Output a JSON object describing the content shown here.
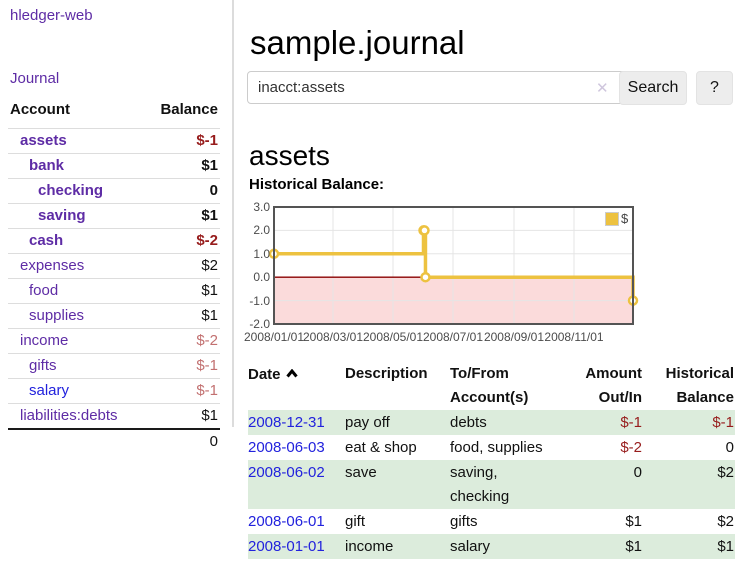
{
  "colors": {
    "accent_purple": "#5e2ca5",
    "link_blue": "#2222dd",
    "negative_strong": "#971c1c",
    "negative_soft": "#c27070",
    "row_green": "#dcecdc"
  },
  "sidebar": {
    "brand": "hledger-web",
    "nav": {
      "journal": "Journal"
    },
    "table": {
      "header": {
        "account": "Account",
        "balance": "Balance"
      },
      "accounts": [
        {
          "name": "assets",
          "balance": "$-1"
        },
        {
          "name": "bank",
          "balance": "$1"
        },
        {
          "name": "checking",
          "balance": "0"
        },
        {
          "name": "saving",
          "balance": "$1"
        },
        {
          "name": "cash",
          "balance": "$-2"
        },
        {
          "name": "expenses",
          "balance": "$2"
        },
        {
          "name": "food",
          "balance": "$1"
        },
        {
          "name": "supplies",
          "balance": "$1"
        },
        {
          "name": "income",
          "balance": "$-2"
        },
        {
          "name": "gifts",
          "balance": "$-1"
        },
        {
          "name": "salary",
          "balance": "$-1"
        },
        {
          "name": "liabilities:debts",
          "balance": "$1"
        }
      ],
      "total": "0"
    }
  },
  "main": {
    "title": "sample.journal",
    "search": {
      "value": "inacct:assets",
      "clear_icon": "✕",
      "search_button": "Search",
      "help_button": "?"
    },
    "account_heading": "assets",
    "chart_heading": "Historical Balance:"
  },
  "chart_data": {
    "type": "line",
    "style": "step",
    "title": "Historical Balance:",
    "series": [
      {
        "name": "$",
        "points": [
          [
            "2008-01-01",
            1
          ],
          [
            "2008-06-01",
            2
          ],
          [
            "2008-06-02",
            2
          ],
          [
            "2008-06-03",
            0
          ],
          [
            "2008-12-31",
            -1
          ]
        ]
      }
    ],
    "x_range": [
      "2008-01-01",
      "2008-12-31"
    ],
    "ylim": [
      -2,
      3
    ],
    "yticks": [
      "3.0",
      "2.0",
      "1.0",
      "0.0",
      "-1.0",
      "-2.0"
    ],
    "xticks": [
      "2008/01/01",
      "2008/03/01",
      "2008/05/01",
      "2008/07/01",
      "2008/09/01",
      "2008/11/01"
    ],
    "grid": true,
    "legend": {
      "position": "top-right",
      "label": "$"
    },
    "colors": {
      "line": "#edc240",
      "negative_region": "#fbdbdb",
      "zero_line": "#8b0000"
    }
  },
  "register": {
    "columns": {
      "date": "Date",
      "description": "Description",
      "accounts": "To/From Account(s)",
      "amount": "Amount Out/In",
      "balance": "Historical Balance"
    },
    "rows": [
      {
        "date": "2008-12-31",
        "description": "pay off",
        "accounts": "debts",
        "amount": "$-1",
        "balance": "$-1"
      },
      {
        "date": "2008-06-03",
        "description": "eat & shop",
        "accounts": "food, supplies",
        "amount": "$-2",
        "balance": "0"
      },
      {
        "date": "2008-06-02",
        "description": "save",
        "accounts": "saving, checking",
        "amount": "0",
        "balance": "$2"
      },
      {
        "date": "2008-06-01",
        "description": "gift",
        "accounts": "gifts",
        "amount": "$1",
        "balance": "$2"
      },
      {
        "date": "2008-01-01",
        "description": "income",
        "accounts": "salary",
        "amount": "$1",
        "balance": "$1"
      }
    ]
  }
}
